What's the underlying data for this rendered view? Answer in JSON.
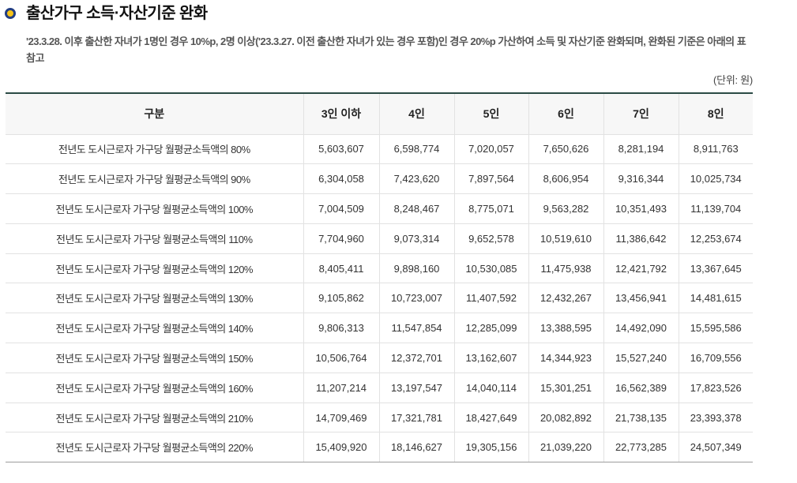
{
  "title": "출산가구 소득·자산기준 완화",
  "description": "'23.3.28. 이후 출산한 자녀가 1명인 경우 10%p, 2명 이상('23.3.27. 이전 출산한 자녀가 있는 경우 포함)인 경우 20%p 가산하여 소득 및 자산기준 완화되며, 완화된 기준은 아래의 표 참고",
  "unit_note": "(단위: 원)",
  "icons": {
    "title_bullet": "circle-bullet-icon"
  },
  "colors": {
    "bullet_ring": "#233e82",
    "bullet_fill": "#f6c318",
    "table_top_border": "#2b4a45",
    "header_background": "#f7f7f7",
    "cell_border": "#e2e2e2",
    "table_bottom_border": "#9c9c9c",
    "body_text": "#333333",
    "description_text": "#555555"
  },
  "table": {
    "headers": [
      "구분",
      "3인 이하",
      "4인",
      "5인",
      "6인",
      "7인",
      "8인"
    ],
    "rows": [
      {
        "label": "전년도 도시근로자 가구당 월평균소득액의 80%",
        "values": [
          "5,603,607",
          "6,598,774",
          "7,020,057",
          "7,650,626",
          "8,281,194",
          "8,911,763"
        ]
      },
      {
        "label": "전년도 도시근로자 가구당 월평균소득액의 90%",
        "values": [
          "6,304,058",
          "7,423,620",
          "7,897,564",
          "8,606,954",
          "9,316,344",
          "10,025,734"
        ]
      },
      {
        "label": "전년도 도시근로자 가구당 월평균소득액의 100%",
        "values": [
          "7,004,509",
          "8,248,467",
          "8,775,071",
          "9,563,282",
          "10,351,493",
          "11,139,704"
        ]
      },
      {
        "label": "전년도 도시근로자 가구당 월평균소득액의 110%",
        "values": [
          "7,704,960",
          "9,073,314",
          "9,652,578",
          "10,519,610",
          "11,386,642",
          "12,253,674"
        ]
      },
      {
        "label": "전년도 도시근로자 가구당 월평균소득액의 120%",
        "values": [
          "8,405,411",
          "9,898,160",
          "10,530,085",
          "11,475,938",
          "12,421,792",
          "13,367,645"
        ]
      },
      {
        "label": "전년도 도시근로자 가구당 월평균소득액의 130%",
        "values": [
          "9,105,862",
          "10,723,007",
          "11,407,592",
          "12,432,267",
          "13,456,941",
          "14,481,615"
        ]
      },
      {
        "label": "전년도 도시근로자 가구당 월평균소득액의 140%",
        "values": [
          "9,806,313",
          "11,547,854",
          "12,285,099",
          "13,388,595",
          "14,492,090",
          "15,595,586"
        ]
      },
      {
        "label": "전년도 도시근로자 가구당 월평균소득액의 150%",
        "values": [
          "10,506,764",
          "12,372,701",
          "13,162,607",
          "14,344,923",
          "15,527,240",
          "16,709,556"
        ]
      },
      {
        "label": "전년도 도시근로자 가구당 월평균소득액의 160%",
        "values": [
          "11,207,214",
          "13,197,547",
          "14,040,114",
          "15,301,251",
          "16,562,389",
          "17,823,526"
        ]
      },
      {
        "label": "전년도 도시근로자 가구당 월평균소득액의 210%",
        "values": [
          "14,709,469",
          "17,321,781",
          "18,427,649",
          "20,082,892",
          "21,738,135",
          "23,393,378"
        ]
      },
      {
        "label": "전년도 도시근로자 가구당 월평균소득액의 220%",
        "values": [
          "15,409,920",
          "18,146,627",
          "19,305,156",
          "21,039,220",
          "22,773,285",
          "24,507,349"
        ]
      }
    ]
  }
}
